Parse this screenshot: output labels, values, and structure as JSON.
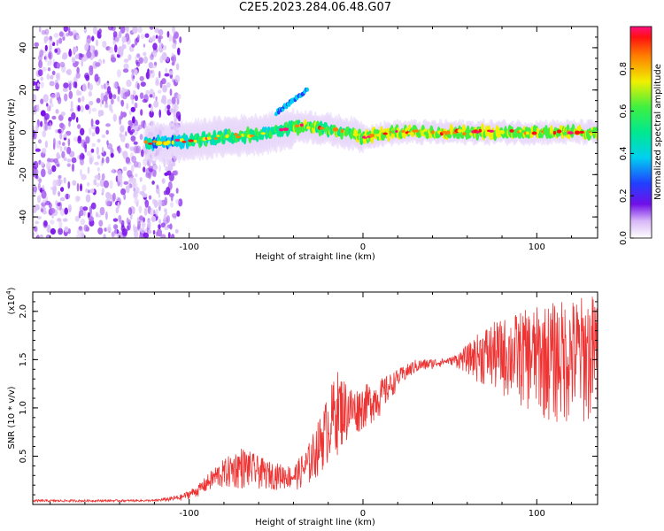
{
  "title": "C2E5.2023.284.06.48.G07",
  "chart_data": [
    {
      "type": "heatmap",
      "xlabel": "Height of straight line (km)",
      "ylabel": "Frequency (Hz)",
      "xlim": [
        -190,
        135
      ],
      "ylim": [
        -50,
        50
      ],
      "xticks": [
        -100,
        0,
        100
      ],
      "yticks": [
        -40,
        -20,
        0,
        20,
        40
      ],
      "colorbar": {
        "label": "Normalized spectral amplitude",
        "range": [
          0,
          1
        ],
        "ticks": [
          "0.0",
          "0.2",
          "0.4",
          "0.6",
          "0.8"
        ]
      },
      "ridge": [
        [
          -120,
          -5
        ],
        [
          -100,
          -4
        ],
        [
          -80,
          -2
        ],
        [
          -60,
          -1
        ],
        [
          -45,
          1
        ],
        [
          -35,
          3
        ],
        [
          -25,
          2
        ],
        [
          -10,
          0
        ],
        [
          0,
          -2
        ],
        [
          20,
          0
        ],
        [
          50,
          0
        ],
        [
          80,
          0
        ],
        [
          100,
          0
        ],
        [
          135,
          0
        ]
      ],
      "branch": [
        [
          -50,
          9
        ],
        [
          -42,
          14
        ],
        [
          -32,
          20
        ]
      ],
      "scatter_region_x": [
        -190,
        -105
      ]
    },
    {
      "type": "line",
      "xlabel": "Height of straight line (km)",
      "ylabel": "SNR (10 * v/v)",
      "scale_label": "(x10",
      "scale_exp": "4",
      "xlim": [
        -190,
        135
      ],
      "ylim": [
        0,
        22000
      ],
      "xticks": [
        -100,
        0,
        100
      ],
      "yticks": [
        "0.5",
        "1.0",
        "1.5",
        "2.0"
      ],
      "color": "#ee3333",
      "envelope": [
        [
          -190,
          250,
          500
        ],
        [
          -120,
          300,
          500
        ],
        [
          -105,
          350,
          1000
        ],
        [
          -95,
          800,
          2000
        ],
        [
          -85,
          1500,
          4000
        ],
        [
          -70,
          1500,
          6000
        ],
        [
          -55,
          1500,
          4500
        ],
        [
          -40,
          1500,
          4000
        ],
        [
          -32,
          1500,
          6000
        ],
        [
          -25,
          3000,
          9000
        ],
        [
          -15,
          5000,
          14000
        ],
        [
          -5,
          7000,
          12000
        ],
        [
          10,
          9000,
          13000
        ],
        [
          20,
          12000,
          14000
        ],
        [
          30,
          13500,
          15000
        ],
        [
          50,
          14500,
          15200
        ],
        [
          60,
          13500,
          16500
        ],
        [
          70,
          12000,
          18500
        ],
        [
          90,
          10000,
          20000
        ],
        [
          110,
          8000,
          21000
        ],
        [
          135,
          8000,
          22000
        ]
      ]
    }
  ]
}
